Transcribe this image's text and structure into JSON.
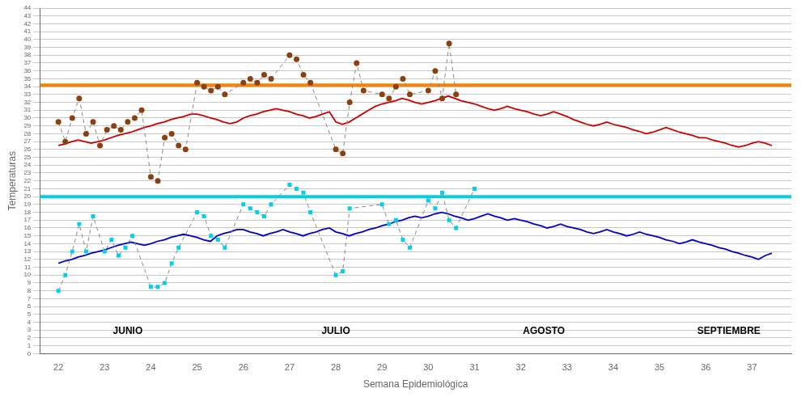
{
  "chart_data": {
    "type": "line",
    "xlabel": "Semana Epidemiológica",
    "ylabel": "Temperaturas",
    "xlim": [
      21.6,
      37.85
    ],
    "xticks": [
      22,
      23,
      24,
      25,
      26,
      27,
      28,
      29,
      30,
      31,
      32,
      33,
      34,
      35,
      36,
      37
    ],
    "ylim": [
      0,
      44
    ],
    "yticks": [
      0,
      1,
      2,
      3,
      4,
      5,
      6,
      7,
      8,
      9,
      10,
      11,
      12,
      13,
      14,
      15,
      16,
      17,
      18,
      19,
      20,
      21,
      22,
      23,
      24,
      25,
      26,
      27,
      28,
      29,
      30,
      31,
      32,
      33,
      34,
      35,
      36,
      37,
      38,
      39,
      40,
      41,
      42,
      43,
      44
    ],
    "grid": "y",
    "background_color": "#FFFFFF",
    "grid_color": "#C8C8C8",
    "reference_lines": [
      {
        "value": 34.2,
        "color": "#FF8000"
      },
      {
        "value": 20.0,
        "color": "#00D0E0"
      }
    ],
    "annotations": [
      {
        "text": "JUNIO",
        "x": 23.5,
        "y": 2.2
      },
      {
        "text": "JULIO",
        "x": 28.0,
        "y": 2.2
      },
      {
        "text": "AGOSTO",
        "x": 32.5,
        "y": 2.2
      },
      {
        "text": "SEPTIEMBRE",
        "x": 36.5,
        "y": 2.2
      }
    ],
    "series": [
      {
        "type": "line",
        "color": "#CC0000",
        "line_style": "solid",
        "x": [
          22.0,
          22.14,
          22.29,
          22.43,
          22.57,
          22.71,
          22.86,
          23.0,
          23.14,
          23.29,
          23.43,
          23.57,
          23.71,
          23.86,
          24.0,
          24.14,
          24.29,
          24.43,
          24.57,
          24.71,
          24.86,
          25.0,
          25.14,
          25.29,
          25.43,
          25.57,
          25.71,
          25.86,
          26.0,
          26.14,
          26.29,
          26.43,
          26.57,
          26.71,
          26.86,
          27.0,
          27.14,
          27.29,
          27.43,
          27.57,
          27.71,
          27.86,
          28.0,
          28.14,
          28.29,
          28.43,
          28.57,
          28.71,
          28.86,
          29.0,
          29.14,
          29.29,
          29.43,
          29.57,
          29.71,
          29.86,
          30.0,
          30.14,
          30.29,
          30.43,
          30.57,
          30.71,
          30.86,
          31.0,
          31.14,
          31.29,
          31.43,
          31.57,
          31.71,
          31.86,
          32.0,
          32.14,
          32.29,
          32.43,
          32.57,
          32.71,
          32.86,
          33.0,
          33.14,
          33.29,
          33.43,
          33.57,
          33.71,
          33.86,
          34.0,
          34.14,
          34.29,
          34.43,
          34.57,
          34.71,
          34.86,
          35.0,
          35.14,
          35.29,
          35.43,
          35.57,
          35.71,
          35.86,
          36.0,
          36.14,
          36.29,
          36.43,
          36.57,
          36.71,
          36.86,
          37.0,
          37.14,
          37.29,
          37.43
        ],
        "values": [
          26.5,
          26.7,
          27.0,
          27.2,
          27.0,
          26.8,
          27.0,
          27.2,
          27.5,
          27.8,
          28.0,
          28.2,
          28.5,
          28.8,
          29.0,
          29.3,
          29.5,
          29.8,
          30.0,
          30.2,
          30.5,
          30.5,
          30.3,
          30.0,
          29.8,
          29.5,
          29.3,
          29.5,
          30.0,
          30.3,
          30.5,
          30.8,
          31.0,
          31.2,
          31.0,
          30.8,
          30.5,
          30.3,
          30.0,
          30.2,
          30.5,
          30.8,
          29.5,
          29.2,
          29.5,
          30.0,
          30.5,
          31.0,
          31.5,
          31.8,
          32.0,
          32.2,
          32.5,
          32.3,
          32.0,
          31.8,
          32.0,
          32.2,
          32.5,
          32.8,
          32.5,
          32.2,
          32.0,
          31.8,
          31.5,
          31.2,
          31.0,
          31.2,
          31.5,
          31.2,
          31.0,
          30.8,
          30.5,
          30.3,
          30.5,
          30.8,
          30.5,
          30.2,
          29.8,
          29.5,
          29.2,
          29.0,
          29.2,
          29.5,
          29.2,
          29.0,
          28.8,
          28.5,
          28.3,
          28.0,
          28.2,
          28.5,
          28.8,
          28.5,
          28.2,
          28.0,
          27.8,
          27.5,
          27.5,
          27.2,
          27.0,
          26.8,
          26.5,
          26.3,
          26.5,
          26.8,
          27.0,
          26.8,
          26.5
        ]
      },
      {
        "type": "line",
        "color": "#0000CC",
        "line_style": "solid",
        "x": [
          22.0,
          22.14,
          22.29,
          22.43,
          22.57,
          22.71,
          22.86,
          23.0,
          23.14,
          23.29,
          23.43,
          23.57,
          23.71,
          23.86,
          24.0,
          24.14,
          24.29,
          24.43,
          24.57,
          24.71,
          24.86,
          25.0,
          25.14,
          25.29,
          25.43,
          25.57,
          25.71,
          25.86,
          26.0,
          26.14,
          26.29,
          26.43,
          26.57,
          26.71,
          26.86,
          27.0,
          27.14,
          27.29,
          27.43,
          27.57,
          27.71,
          27.86,
          28.0,
          28.14,
          28.29,
          28.43,
          28.57,
          28.71,
          28.86,
          29.0,
          29.14,
          29.29,
          29.43,
          29.57,
          29.71,
          29.86,
          30.0,
          30.14,
          30.29,
          30.43,
          30.57,
          30.71,
          30.86,
          31.0,
          31.14,
          31.29,
          31.43,
          31.57,
          31.71,
          31.86,
          32.0,
          32.14,
          32.29,
          32.43,
          32.57,
          32.71,
          32.86,
          33.0,
          33.14,
          33.29,
          33.43,
          33.57,
          33.71,
          33.86,
          34.0,
          34.14,
          34.29,
          34.43,
          34.57,
          34.71,
          34.86,
          35.0,
          35.14,
          35.29,
          35.43,
          35.57,
          35.71,
          35.86,
          36.0,
          36.14,
          36.29,
          36.43,
          36.57,
          36.71,
          36.86,
          37.0,
          37.14,
          37.29,
          37.43
        ],
        "values": [
          11.5,
          11.8,
          12.0,
          12.3,
          12.5,
          12.8,
          13.0,
          13.2,
          13.5,
          13.8,
          14.0,
          14.2,
          14.0,
          13.8,
          14.0,
          14.3,
          14.5,
          14.8,
          15.0,
          15.2,
          15.0,
          14.8,
          14.5,
          14.3,
          15.0,
          15.3,
          15.5,
          15.8,
          15.8,
          15.5,
          15.3,
          15.0,
          15.3,
          15.5,
          15.8,
          15.5,
          15.3,
          15.0,
          15.3,
          15.5,
          15.8,
          16.0,
          15.5,
          15.3,
          15.0,
          15.3,
          15.5,
          15.8,
          16.0,
          16.3,
          16.5,
          16.8,
          17.0,
          17.3,
          17.5,
          17.3,
          17.5,
          17.8,
          18.0,
          17.8,
          17.5,
          17.3,
          17.0,
          17.2,
          17.5,
          17.8,
          17.5,
          17.3,
          17.0,
          17.2,
          17.0,
          16.8,
          16.5,
          16.3,
          16.0,
          16.2,
          16.5,
          16.2,
          16.0,
          15.8,
          15.5,
          15.3,
          15.5,
          15.8,
          15.5,
          15.3,
          15.0,
          15.2,
          15.5,
          15.2,
          15.0,
          14.8,
          14.5,
          14.3,
          14.0,
          14.2,
          14.5,
          14.2,
          14.0,
          13.8,
          13.5,
          13.3,
          13.0,
          12.8,
          12.5,
          12.3,
          12.0,
          12.5,
          12.8
        ]
      },
      {
        "type": "scatter",
        "color": "#8B4010",
        "marker": "circle",
        "line_style": "dashed",
        "x": [
          22.0,
          22.15,
          22.3,
          22.45,
          22.6,
          22.75,
          22.9,
          23.05,
          23.2,
          23.35,
          23.5,
          23.65,
          23.8,
          24.0,
          24.15,
          24.3,
          24.45,
          24.6,
          24.75,
          25.0,
          25.15,
          25.3,
          25.45,
          25.6,
          26.0,
          26.15,
          26.3,
          26.45,
          26.6,
          27.0,
          27.15,
          27.3,
          27.45,
          28.0,
          28.15,
          28.3,
          28.45,
          28.6,
          29.0,
          29.15,
          29.3,
          29.45,
          29.6,
          30.0,
          30.15,
          30.3,
          30.45,
          30.6
        ],
        "values": [
          29.5,
          27.0,
          30.0,
          32.5,
          28.0,
          29.5,
          26.5,
          28.5,
          29.0,
          28.5,
          29.5,
          30.0,
          31.0,
          22.5,
          22.0,
          27.5,
          28.0,
          26.5,
          26.0,
          34.5,
          34.0,
          33.5,
          34.0,
          33.0,
          34.5,
          35.0,
          34.5,
          35.5,
          35.0,
          38.0,
          37.5,
          35.5,
          34.5,
          26.0,
          25.5,
          32.0,
          37.0,
          33.5,
          33.0,
          32.5,
          34.0,
          35.0,
          33.0,
          33.5,
          36.0,
          32.5,
          39.5,
          33.0
        ]
      },
      {
        "type": "scatter",
        "color": "#00CFEE",
        "marker": "square",
        "line_style": "dashed",
        "x": [
          22.0,
          22.15,
          22.3,
          22.45,
          22.6,
          22.75,
          23.0,
          23.15,
          23.3,
          23.45,
          23.6,
          24.0,
          24.15,
          24.3,
          24.45,
          24.6,
          25.0,
          25.15,
          25.3,
          25.45,
          25.6,
          26.0,
          26.15,
          26.3,
          26.45,
          26.6,
          27.0,
          27.15,
          27.3,
          27.45,
          28.0,
          28.15,
          28.3,
          29.0,
          29.15,
          29.3,
          29.45,
          29.6,
          30.0,
          30.15,
          30.3,
          30.45,
          30.6,
          31.0
        ],
        "values": [
          8.0,
          10.0,
          13.0,
          16.5,
          13.0,
          17.5,
          13.0,
          14.5,
          12.5,
          13.5,
          15.0,
          8.5,
          8.5,
          9.0,
          11.5,
          13.5,
          18.0,
          17.5,
          15.0,
          14.5,
          13.5,
          19.0,
          18.5,
          18.0,
          17.5,
          19.0,
          21.5,
          21.0,
          20.5,
          18.0,
          10.0,
          10.5,
          18.5,
          19.0,
          16.5,
          17.0,
          14.5,
          13.5,
          19.5,
          18.5,
          20.5,
          17.0,
          16.0,
          21.0
        ]
      }
    ]
  }
}
